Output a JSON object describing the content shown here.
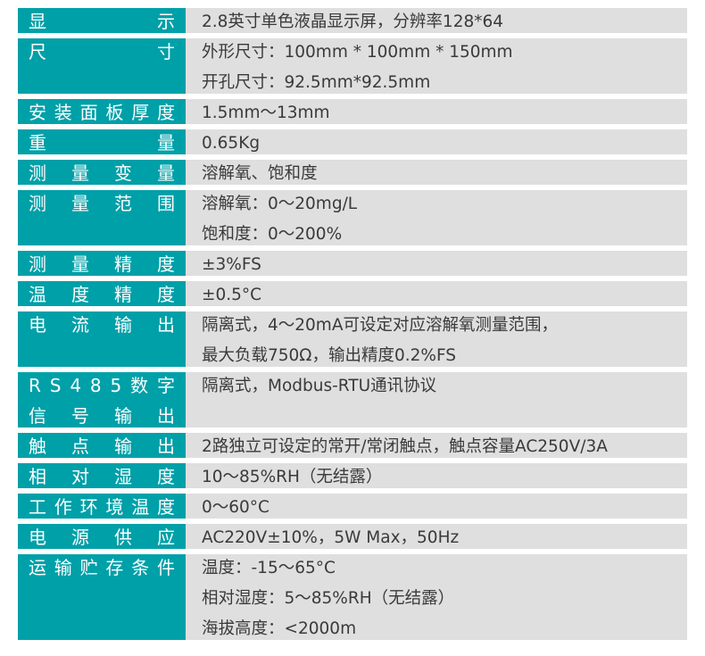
{
  "colors": {
    "label_bg": "#00a0a8",
    "value_bg": "#dfdfdf",
    "label_text": "#ffffff",
    "value_text": "#3a3a3a"
  },
  "rows": [
    {
      "label": [
        "显示"
      ],
      "values": [
        "2.8英寸单色液晶显示屏，分辨率128*64"
      ]
    },
    {
      "label": [
        "尺寸"
      ],
      "values": [
        "外形尺寸：100mm * 100mm * 150mm",
        "开孔尺寸：92.5mm*92.5mm"
      ]
    },
    {
      "label": [
        "安装面板厚度"
      ],
      "values": [
        "1.5mm～13mm"
      ]
    },
    {
      "label": [
        "重量"
      ],
      "values": [
        "0.65Kg"
      ]
    },
    {
      "label": [
        "测量变量"
      ],
      "values": [
        "溶解氧、饱和度"
      ]
    },
    {
      "label": [
        "测量范围"
      ],
      "values": [
        "溶解氧：0～20mg/L",
        "饱和度：0～200%"
      ]
    },
    {
      "label": [
        "测量精度"
      ],
      "values": [
        "±3%FS"
      ]
    },
    {
      "label": [
        "温度精度"
      ],
      "values": [
        "±0.5°C"
      ]
    },
    {
      "label": [
        "电流输出"
      ],
      "values": [
        "隔离式，4～20mA可设定对应溶解氧测量范围，",
        "最大负载750Ω，输出精度0.2%FS"
      ]
    },
    {
      "label": [
        "RS485数字",
        "信号输出"
      ],
      "values": [
        "隔离式，Modbus-RTU通讯协议",
        ""
      ]
    },
    {
      "label": [
        "触点输出"
      ],
      "values": [
        "2路独立可设定的常开/常闭触点，触点容量AC250V/3A"
      ]
    },
    {
      "label": [
        "相对湿度"
      ],
      "values": [
        "10～85%RH（无结露）"
      ]
    },
    {
      "label": [
        "工作环境温度"
      ],
      "values": [
        "0～60°C"
      ]
    },
    {
      "label": [
        "电源供应"
      ],
      "values": [
        "AC220V±10%，5W Max，50Hz"
      ]
    },
    {
      "label": [
        "运输贮存条件"
      ],
      "values": [
        "温度：-15～65°C",
        "相对湿度：5～85%RH（无结露）",
        "海拔高度：<2000m"
      ]
    }
  ]
}
